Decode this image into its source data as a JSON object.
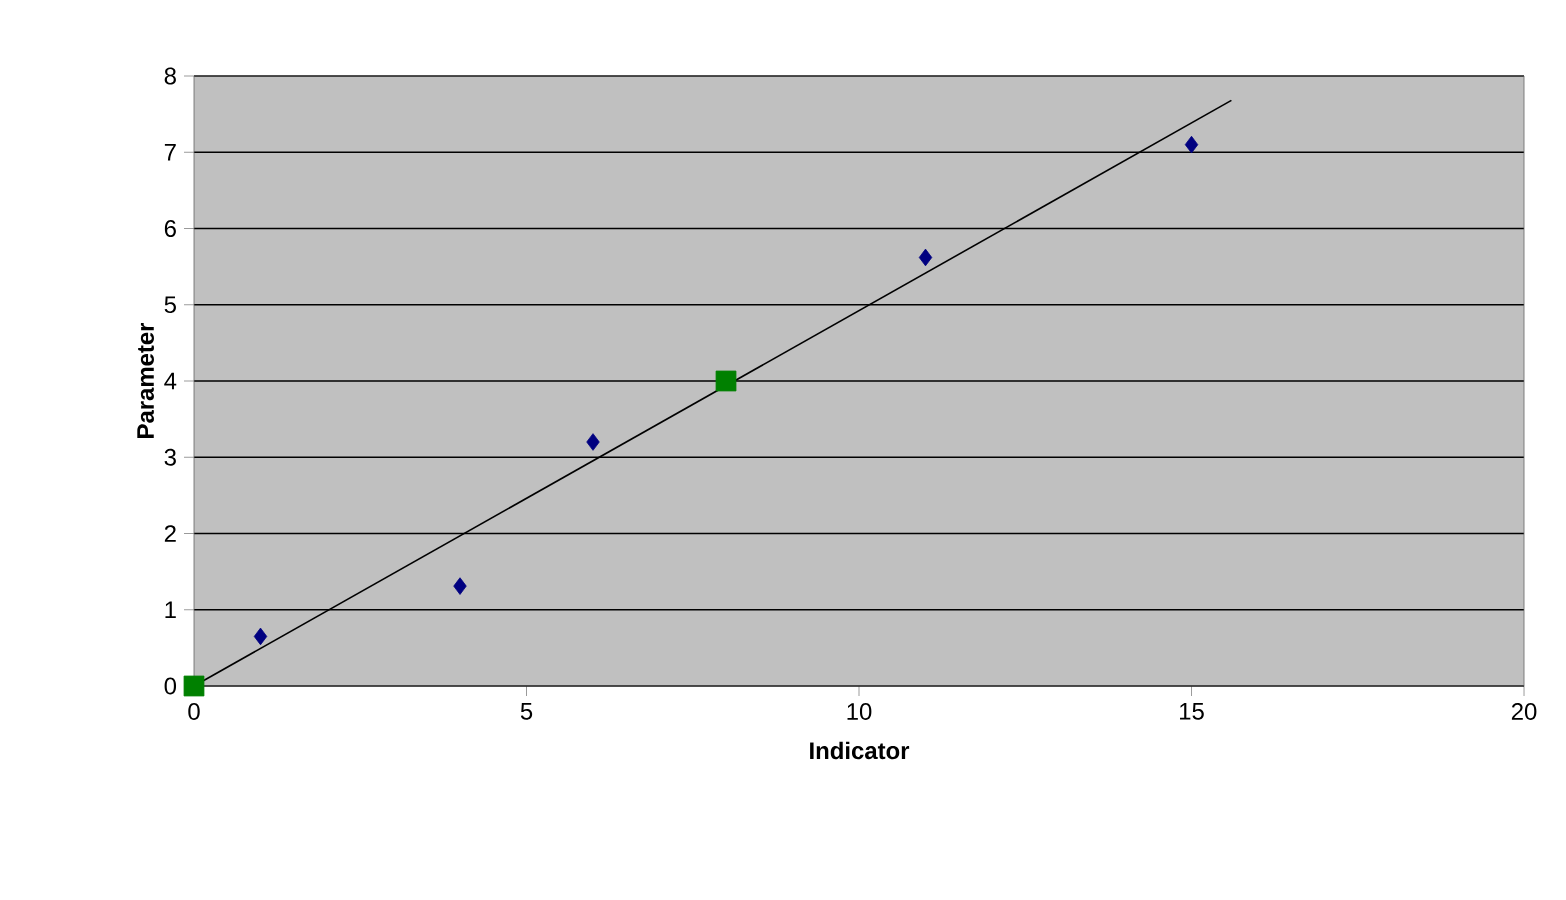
{
  "chart_data": {
    "type": "scatter",
    "xlabel": "Indicator",
    "ylabel": "Parameter",
    "xlim": [
      0,
      20
    ],
    "xticks": [
      0,
      5,
      10,
      15,
      20
    ],
    "ylim": [
      0,
      8
    ],
    "yticks": [
      0,
      1,
      2,
      3,
      4,
      5,
      6,
      7,
      8
    ],
    "grid": "y",
    "legend": false,
    "series": [
      {
        "marker": "diamond",
        "color": "#000080",
        "x": [
          1,
          4,
          6,
          11,
          15
        ],
        "values": [
          0.65,
          1.31,
          3.2,
          5.62,
          7.1
        ]
      },
      {
        "marker": "square",
        "color": "#008000",
        "x": [
          0,
          8
        ],
        "values": [
          0,
          4
        ]
      },
      {
        "type": "line",
        "marker": "none",
        "line_style": "solid",
        "color": "#000000",
        "x": [
          0,
          15.6
        ],
        "values": [
          0,
          7.68
        ]
      }
    ]
  }
}
